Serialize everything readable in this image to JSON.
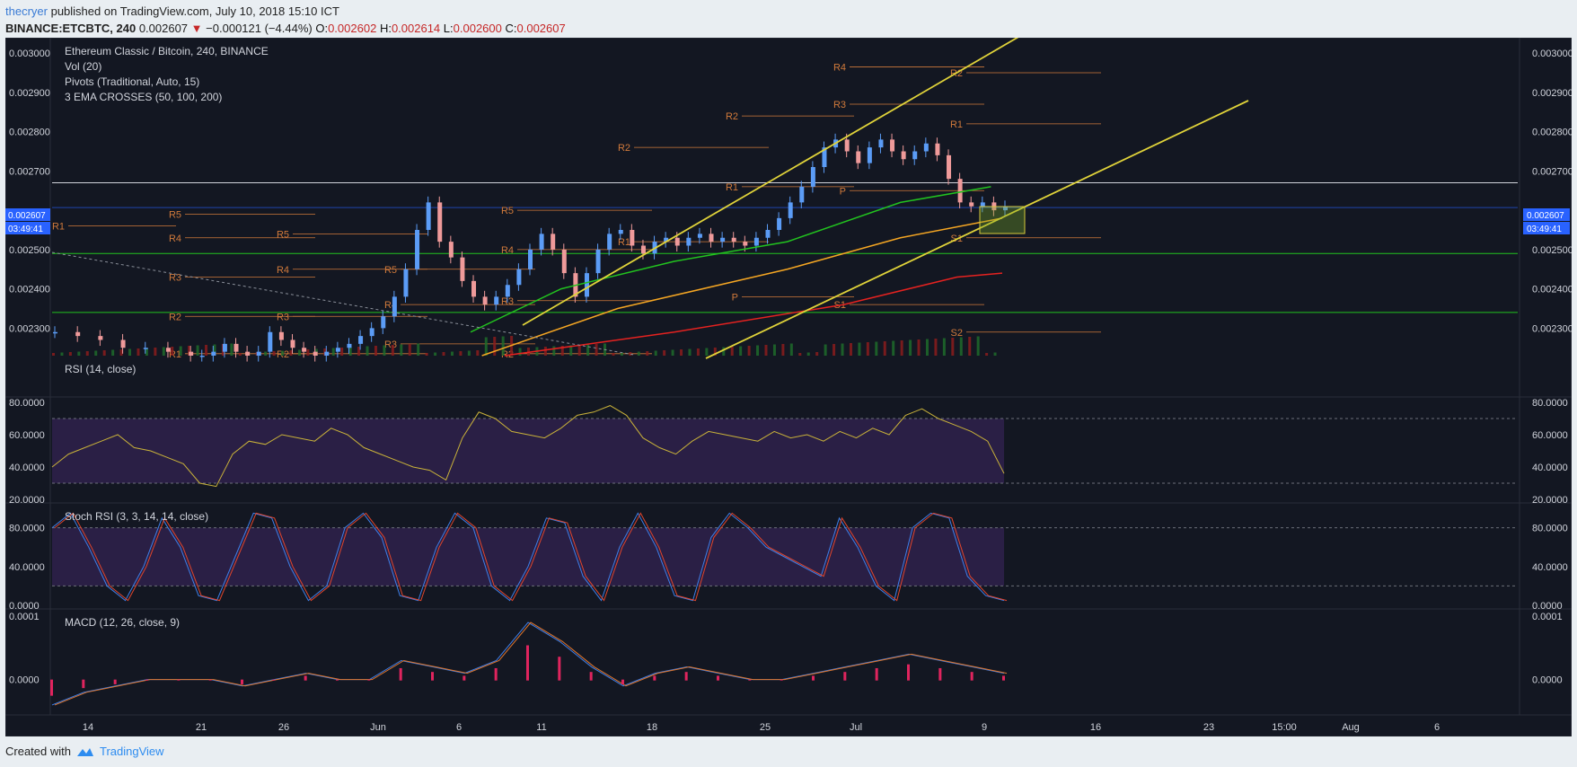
{
  "header": {
    "author": "thecryer",
    "published_text": "published on TradingView.com, July 10, 2018 15:10 ICT",
    "symbol": "BINANCE:ETCBTC, 240",
    "last": "0.002607",
    "change": "−0.000121 (−4.44%)",
    "o_label": "O:",
    "o_value": "0.002602",
    "h_label": "H:",
    "h_value": "0.002614",
    "l_label": "L:",
    "l_value": "0.002600",
    "c_label": "C:",
    "c_value": "0.002607"
  },
  "legend": {
    "title": "Ethereum Classic / Bitcoin, 240, BINANCE",
    "vol": "Vol (20)",
    "pivots": "Pivots (Traditional, Auto, 15)",
    "ema": "3 EMA CROSSES (50, 100, 200)"
  },
  "price_tag": {
    "value": "0.002607",
    "countdown": "03:49:41"
  },
  "footer": {
    "created_with": "Created with",
    "brand": "TradingView"
  },
  "colors": {
    "background": "#131722",
    "up": "#5b9cf6",
    "down": "#ef9a9a",
    "ema50": "#22c31f",
    "ema100": "#f5a623",
    "ema200": "#e52220",
    "channel": "#e0d33a",
    "pivot": "#d17a3b",
    "rsi_band": "#2a1f45",
    "accent": "#2962ff"
  },
  "chart_data": [
    {
      "type": "line",
      "name": "price",
      "x_ticks": [
        "14",
        "21",
        "26",
        "Jun",
        "6",
        "11",
        "18",
        "25",
        "Jul",
        "9",
        "16",
        "23",
        "15:00",
        "Aug",
        "6"
      ],
      "y_ticks": [
        "0.003000",
        "0.002900",
        "0.002800",
        "0.002700",
        "0.002500",
        "0.002400",
        "0.002300"
      ],
      "ylim": [
        0.00223,
        0.00303
      ],
      "x": [
        0,
        4,
        8,
        12,
        16,
        20,
        24,
        26,
        28,
        30,
        32,
        34,
        36,
        38,
        40,
        42,
        44,
        46,
        48,
        50,
        52,
        54,
        56,
        58,
        60,
        62,
        64,
        66,
        68,
        70,
        72,
        74,
        76,
        78,
        80,
        82,
        84,
        86,
        88,
        90,
        92,
        94,
        96,
        98,
        100,
        102,
        104,
        106,
        108,
        110,
        112,
        114,
        116,
        118,
        120,
        122,
        124,
        126,
        128,
        130,
        132,
        134,
        136,
        138,
        140,
        142,
        144,
        146,
        148,
        150,
        152,
        154,
        156,
        158,
        160,
        162,
        164,
        166,
        168
      ],
      "values": [
        0.00229,
        0.00228,
        0.00227,
        0.00225,
        0.00225,
        0.00224,
        0.00223,
        0.00223,
        0.00224,
        0.00226,
        0.00224,
        0.00223,
        0.00224,
        0.00229,
        0.00227,
        0.00225,
        0.00224,
        0.00223,
        0.00224,
        0.00225,
        0.00226,
        0.00228,
        0.0023,
        0.00233,
        0.00238,
        0.00245,
        0.00255,
        0.00262,
        0.00252,
        0.00248,
        0.00242,
        0.00238,
        0.00236,
        0.00238,
        0.00241,
        0.00245,
        0.0025,
        0.00254,
        0.0025,
        0.00244,
        0.00238,
        0.00244,
        0.0025,
        0.00254,
        0.00255,
        0.00251,
        0.00249,
        0.00252,
        0.00253,
        0.00251,
        0.00253,
        0.00254,
        0.00252,
        0.00253,
        0.00252,
        0.00251,
        0.00253,
        0.00255,
        0.00258,
        0.00262,
        0.00266,
        0.00271,
        0.00276,
        0.00278,
        0.00275,
        0.00272,
        0.00276,
        0.00278,
        0.00275,
        0.00273,
        0.00275,
        0.00277,
        0.00274,
        0.00268,
        0.00262,
        0.00261,
        0.00262,
        0.0026,
        0.00261
      ],
      "series": [
        {
          "name": "EMA 50",
          "x": [
            74,
            90,
            110,
            130,
            150,
            166
          ],
          "values": [
            0.00229,
            0.0024,
            0.00247,
            0.00252,
            0.00262,
            0.00266
          ]
        },
        {
          "name": "EMA 100",
          "x": [
            76,
            100,
            130,
            150,
            168
          ],
          "values": [
            0.00223,
            0.00235,
            0.00245,
            0.00253,
            0.00258
          ]
        },
        {
          "name": "EMA 200",
          "x": [
            80,
            110,
            140,
            160,
            168
          ],
          "values": [
            0.00223,
            0.00229,
            0.00236,
            0.00243,
            0.00244
          ]
        }
      ],
      "hlines": [
        0.00267,
        0.002607,
        0.00249,
        0.00234
      ],
      "pivot_labels": [
        "R5",
        "R4",
        "R3",
        "R2",
        "R1",
        "P",
        "S1",
        "S2"
      ]
    },
    {
      "type": "line",
      "name": "RSI (14, close)",
      "y_ticks": [
        "80.0000",
        "60.0000",
        "40.0000",
        "20.0000"
      ],
      "ylim": [
        20,
        80
      ],
      "band": [
        30,
        70
      ],
      "values": [
        40,
        48,
        52,
        56,
        60,
        52,
        50,
        46,
        42,
        30,
        28,
        48,
        56,
        54,
        60,
        58,
        56,
        64,
        60,
        52,
        48,
        44,
        40,
        38,
        32,
        58,
        74,
        70,
        62,
        60,
        58,
        64,
        72,
        74,
        78,
        72,
        58,
        52,
        48,
        56,
        62,
        60,
        58,
        56,
        62,
        58,
        60,
        56,
        62,
        58,
        64,
        60,
        72,
        76,
        70,
        66,
        62,
        56,
        36
      ]
    },
    {
      "type": "line",
      "name": "Stoch RSI (3, 3, 14, 14, close)",
      "y_ticks": [
        "80.0000",
        "40.0000",
        "0.0000"
      ],
      "ylim": [
        0,
        100
      ],
      "band": [
        20,
        80
      ],
      "values": [
        80,
        95,
        60,
        20,
        5,
        40,
        90,
        60,
        10,
        5,
        50,
        95,
        90,
        40,
        5,
        20,
        80,
        95,
        70,
        10,
        5,
        60,
        95,
        80,
        20,
        5,
        40,
        90,
        85,
        30,
        5,
        60,
        95,
        60,
        10,
        5,
        70,
        95,
        80,
        60,
        50,
        40,
        30,
        90,
        60,
        20,
        5,
        80,
        95,
        90,
        30,
        10,
        5
      ]
    },
    {
      "type": "line",
      "name": "MACD (12, 26, close, 9)",
      "y_ticks": [
        "0.0001",
        "0.0000"
      ],
      "ylim": [
        -5e-05,
        0.0001
      ],
      "values": [
        -4e-05,
        -2e-05,
        -1e-05,
        0.0,
        0.0,
        0.0,
        -1e-05,
        0.0,
        1e-05,
        0.0,
        0.0,
        3e-05,
        2e-05,
        1e-05,
        3e-05,
        9e-05,
        6e-05,
        2e-05,
        -1e-05,
        1e-05,
        2e-05,
        1e-05,
        0.0,
        0.0,
        1e-05,
        2e-05,
        3e-05,
        4e-05,
        3e-05,
        2e-05,
        1e-05
      ]
    }
  ]
}
